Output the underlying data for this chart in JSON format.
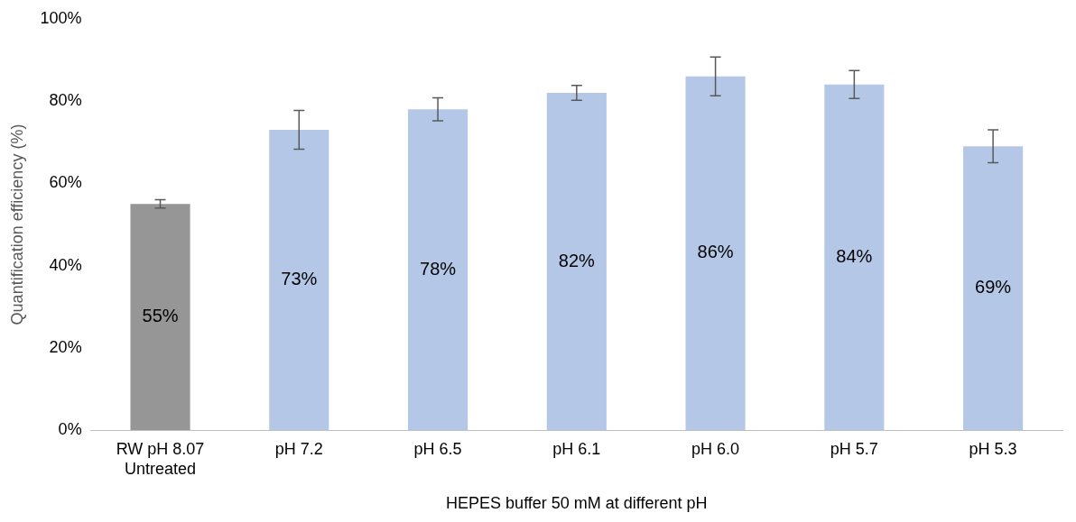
{
  "chart_data": {
    "type": "bar",
    "xlabel": "HEPES buffer 50 mM at different pH",
    "ylabel": "Quantification efficiency (%)",
    "categories": [
      "RW pH 8.07\nUntreated",
      "pH 7.2",
      "pH 6.5",
      "pH 6.1",
      "pH 6.0",
      "pH 5.7",
      "pH 5.3"
    ],
    "values": [
      55,
      73,
      78,
      82,
      86,
      84,
      69
    ],
    "colors": [
      "#969696",
      "#b4c7e7",
      "#b4c7e7",
      "#b4c7e7",
      "#b4c7e7",
      "#b4c7e7",
      "#b4c7e7"
    ],
    "errors": [
      1,
      4.7,
      2.8,
      1.8,
      4.7,
      3.4,
      4
    ],
    "value_labels": [
      "55%",
      "73%",
      "78%",
      "82%",
      "86%",
      "84%",
      "69%"
    ],
    "ylim": [
      0,
      100
    ],
    "yticks": [
      {
        "value": 0,
        "label": "0%"
      },
      {
        "value": 20,
        "label": "20%"
      },
      {
        "value": 40,
        "label": "40%"
      },
      {
        "value": 60,
        "label": "60%"
      },
      {
        "value": 80,
        "label": "80%"
      },
      {
        "value": 100,
        "label": "100%"
      }
    ],
    "grid": false,
    "legend": false
  }
}
